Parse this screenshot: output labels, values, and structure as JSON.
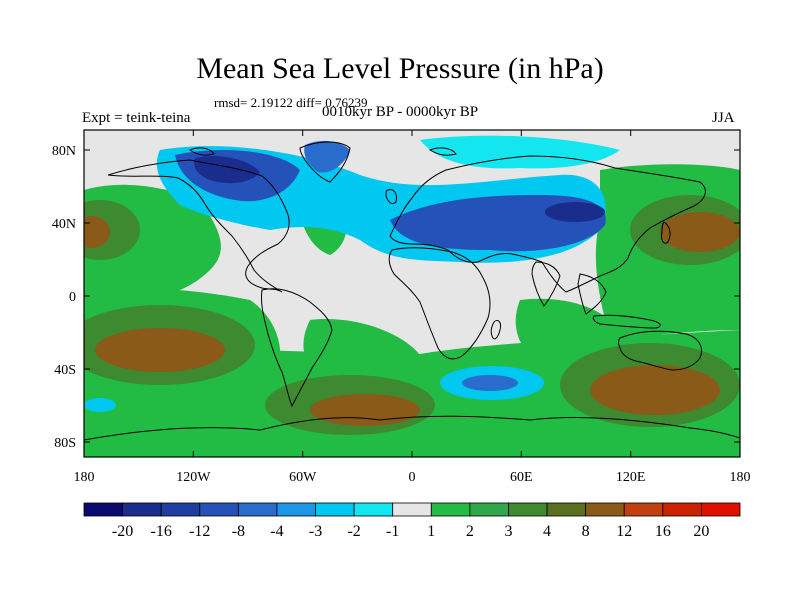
{
  "title": "Mean Sea Level Pressure (in hPa)",
  "stats": "rmsd= 2.19122 diff= 0.76239",
  "experiment": "Expt = teink-teina",
  "period": "0010kyr BP - 0000kyr BP",
  "season": "JJA",
  "map": {
    "lat_labels": [
      "80N",
      "40N",
      "0",
      "40S",
      "80S"
    ],
    "lon_labels": [
      "180",
      "120W",
      "60W",
      "0",
      "60E",
      "120E",
      "180"
    ]
  },
  "colorbar": {
    "labels": [
      "-20",
      "-16",
      "-12",
      "-8",
      "-4",
      "-3",
      "-2",
      "-1",
      "1",
      "2",
      "3",
      "4",
      "8",
      "12",
      "16",
      "20"
    ],
    "colors": [
      "#0a0a6e",
      "#1a2c8c",
      "#1f3fa0",
      "#2452b8",
      "#2a6ccc",
      "#1e96e6",
      "#00c8f0",
      "#14e6f0",
      "#e6e6e6",
      "#22bb44",
      "#2ea84a",
      "#3d8a30",
      "#5a7020",
      "#8a5a18",
      "#c04010",
      "#cc2200",
      "#e01000"
    ]
  },
  "palette": {
    "white": "#e6e6e6",
    "green": "#22bb44",
    "green_dark": "#2ea84a",
    "olive": "#3d8a30",
    "brown": "#8a5a18",
    "cyan": "#00c8f0",
    "cyan_light": "#14e6f0",
    "blue_mid": "#2a6ccc",
    "blue": "#2452b8",
    "blue_dark": "#1a2c8c"
  }
}
